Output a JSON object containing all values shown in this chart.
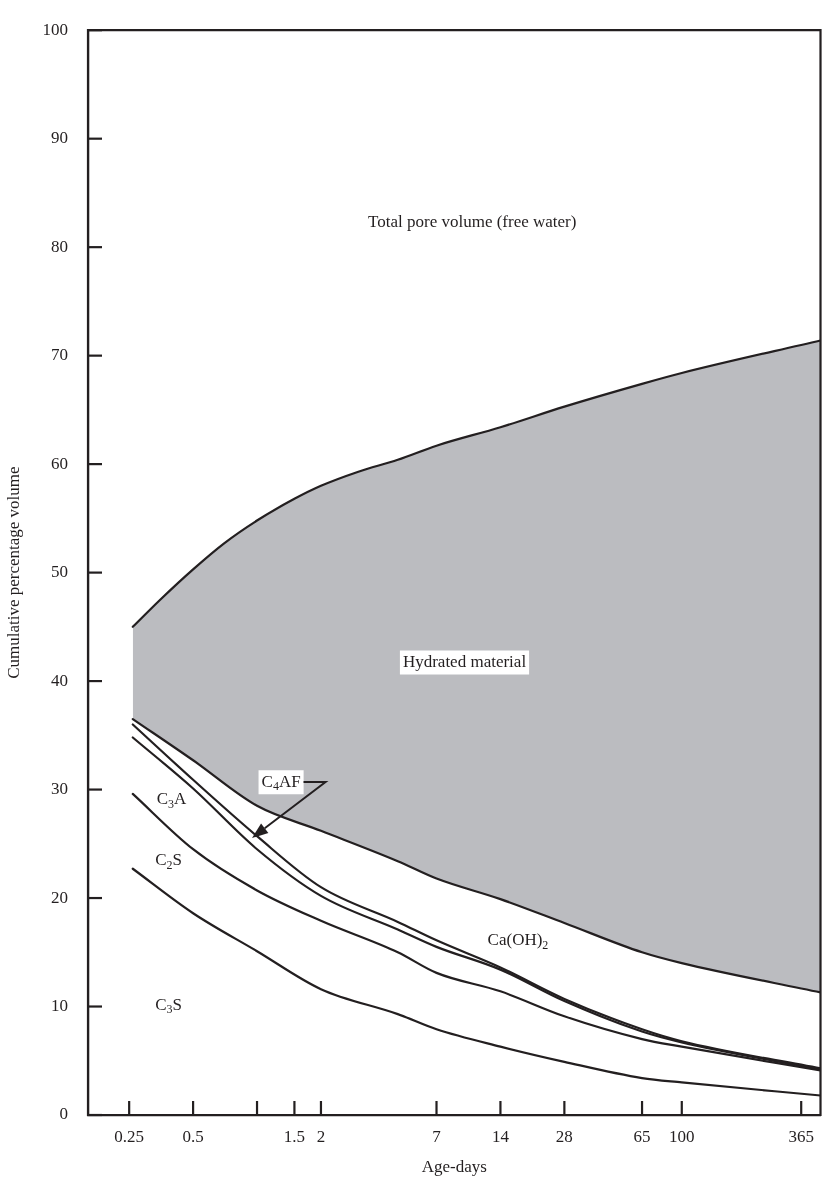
{
  "chart_data": {
    "type": "line",
    "xlabel": "Age-days",
    "ylabel": "Cumulative percentage volume",
    "log": "x",
    "xlim": [
      0.16,
      450
    ],
    "xticks": [
      0.25,
      0.5,
      {
        "value": 1,
        "label": null
      },
      1.5,
      2,
      7,
      14,
      28,
      65,
      100,
      365
    ],
    "ylim": [
      0,
      100
    ],
    "yticks": [
      0,
      10,
      20,
      30,
      40,
      50,
      60,
      70,
      80,
      90,
      100
    ],
    "grid": false,
    "legend": false,
    "x": [
      0.26,
      0.5,
      1,
      2,
      4.6,
      7,
      14,
      28,
      65,
      100,
      450
    ],
    "series": [
      {
        "color": "#231f20",
        "values": [
          22.7,
          18.6,
          15.1,
          11.6,
          9.3,
          7.9,
          6.3,
          4.9,
          3.4,
          3.0,
          1.8
        ]
      },
      {
        "name": "C$_{2}$S",
        "color": "#231f20",
        "values": [
          29.6,
          24.5,
          20.7,
          17.9,
          15.0,
          13.1,
          11.4,
          9.1,
          7.0,
          6.3,
          4.1
        ]
      },
      {
        "name": "C$_{3}$A",
        "color": "#231f20",
        "values": [
          34.8,
          30.1,
          24.5,
          20.2,
          17.1,
          15.5,
          13.4,
          10.5,
          7.7,
          6.7,
          4.2
        ]
      },
      {
        "color": "#231f20",
        "values": [
          36.0,
          30.9,
          25.7,
          21.0,
          17.8,
          16.1,
          13.6,
          10.7,
          7.9,
          6.8,
          4.3
        ]
      },
      {
        "name": "Ca(OH)$_{2}$",
        "color": "#231f20",
        "values": [
          36.5,
          32.7,
          28.5,
          26.2,
          23.4,
          21.8,
          19.9,
          17.7,
          15.0,
          14.0,
          11.3
        ]
      },
      {
        "name": "Hydrated material",
        "type": "area",
        "color": "#bbbcc0",
        "x": [
          0.26,
          0.35,
          0.5,
          0.7,
          1,
          1.5,
          2,
          3,
          4.6,
          7,
          14,
          28,
          65,
          100,
          450
        ],
        "values": [
          45.0,
          47.5,
          50.3,
          52.7,
          54.8,
          56.8,
          58.0,
          59.3,
          60.4,
          61.7,
          63.4,
          65.3,
          67.4,
          68.4,
          71.4
        ]
      }
    ],
    "annotations": [
      "Total pore volume (free water)",
      "C$_{3}$S",
      "C$_{4}$AF"
    ]
  }
}
